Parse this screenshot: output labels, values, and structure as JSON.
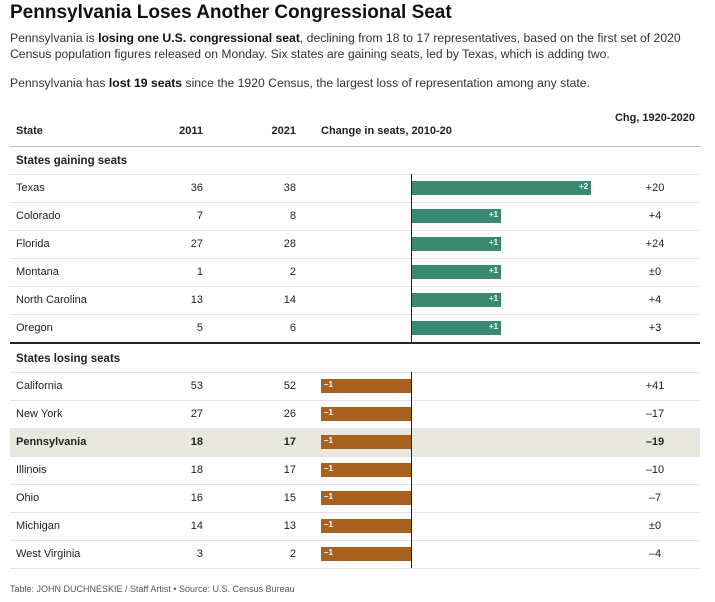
{
  "title": "Pennsylvania Loses Another Congressional Seat",
  "intro": {
    "p1_a": "Pennsylvania is ",
    "p1_bold": "losing one U.S. congressional seat",
    "p1_b": ", declining from 18 to 17 representatives, based on the first set of 2020 Census population figures released on Monday. Six states are gaining seats, led by Texas, which is adding two.",
    "p2_a": "Pennsylvania has ",
    "p2_bold": "lost 19 seats",
    "p2_b": " since the 1920 Census, the largest loss of representation among any state."
  },
  "headers": {
    "state": "State",
    "y2011": "2011",
    "y2021": "2021",
    "change": "Change in seats, 2010-20",
    "chg": "Chg, 1920-2020"
  },
  "sections": {
    "gaining": "States gaining seats",
    "losing": "States losing seats"
  },
  "source": "Table: JOHN DUCHNESKIE / Staff Artist • Source: U.S. Census Bureau",
  "colors": {
    "gain": "#3a8a73",
    "loss": "#a8611f",
    "highlight_row": "#e9e8df"
  },
  "chart_data": {
    "type": "table",
    "title": "Pennsylvania Loses Another Congressional Seat",
    "columns": [
      "State",
      "2011",
      "2021",
      "Change in seats, 2010-20",
      "Chg, 1920-2020"
    ],
    "groups": [
      {
        "name": "States gaining seats",
        "rows": [
          {
            "state": "Texas",
            "y2011": "36",
            "y2021": "38",
            "change": 2,
            "change_label": "+2",
            "chg": "+20"
          },
          {
            "state": "Colorado",
            "y2011": "7",
            "y2021": "8",
            "change": 1,
            "change_label": "+1",
            "chg": "+4"
          },
          {
            "state": "Florida",
            "y2011": "27",
            "y2021": "28",
            "change": 1,
            "change_label": "+1",
            "chg": "+24"
          },
          {
            "state": "Montana",
            "y2011": "1",
            "y2021": "2",
            "change": 1,
            "change_label": "+1",
            "chg": "±0"
          },
          {
            "state": "North Carolina",
            "y2011": "13",
            "y2021": "14",
            "change": 1,
            "change_label": "+1",
            "chg": "+4"
          },
          {
            "state": "Oregon",
            "y2011": "5",
            "y2021": "6",
            "change": 1,
            "change_label": "+1",
            "chg": "+3"
          }
        ]
      },
      {
        "name": "States losing seats",
        "rows": [
          {
            "state": "California",
            "y2011": "53",
            "y2021": "52",
            "change": -1,
            "change_label": "–1",
            "chg": "+41"
          },
          {
            "state": "New York",
            "y2011": "27",
            "y2021": "26",
            "change": -1,
            "change_label": "–1",
            "chg": "–17"
          },
          {
            "state": "Pennsylvania",
            "y2011": "18",
            "y2021": "17",
            "change": -1,
            "change_label": "–1",
            "chg": "–19",
            "highlight": true
          },
          {
            "state": "Illinois",
            "y2011": "18",
            "y2021": "17",
            "change": -1,
            "change_label": "–1",
            "chg": "–10"
          },
          {
            "state": "Ohio",
            "y2011": "16",
            "y2021": "15",
            "change": -1,
            "change_label": "–1",
            "chg": "–7"
          },
          {
            "state": "Michigan",
            "y2011": "14",
            "y2021": "13",
            "change": -1,
            "change_label": "–1",
            "chg": "±0"
          },
          {
            "state": "West Virginia",
            "y2011": "3",
            "y2021": "2",
            "change": -1,
            "change_label": "–1",
            "chg": "–4"
          }
        ]
      }
    ],
    "change_range": [
      -1,
      2
    ]
  }
}
